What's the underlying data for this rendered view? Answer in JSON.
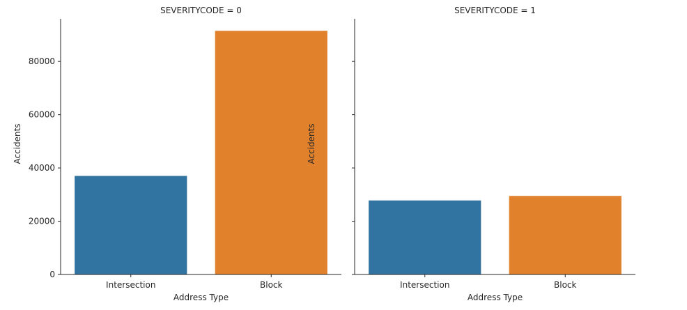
{
  "chart_data": [
    {
      "type": "bar",
      "title": "SEVERITYCODE = 0",
      "xlabel": "Address Type",
      "ylabel": "Accidents",
      "categories": [
        "Intersection",
        "Block"
      ],
      "values": [
        37000,
        91500
      ],
      "bar_colors": [
        "#3274a1",
        "#e1812c"
      ],
      "ylim": [
        0,
        96000
      ],
      "yticks": [
        0,
        20000,
        40000,
        60000,
        80000
      ],
      "ytick_labels": [
        "0",
        "20000",
        "40000",
        "60000",
        "80000"
      ],
      "grid": false,
      "legend": "none"
    },
    {
      "type": "bar",
      "title": "SEVERITYCODE = 1",
      "xlabel": "Address Type",
      "ylabel": "Accidents",
      "categories": [
        "Intersection",
        "Block"
      ],
      "values": [
        27800,
        29500
      ],
      "bar_colors": [
        "#3274a1",
        "#e1812c"
      ],
      "ylim": [
        0,
        96000
      ],
      "yticks": [
        0,
        20000,
        40000,
        60000,
        80000
      ],
      "ytick_labels": [],
      "grid": false,
      "legend": "none"
    }
  ]
}
